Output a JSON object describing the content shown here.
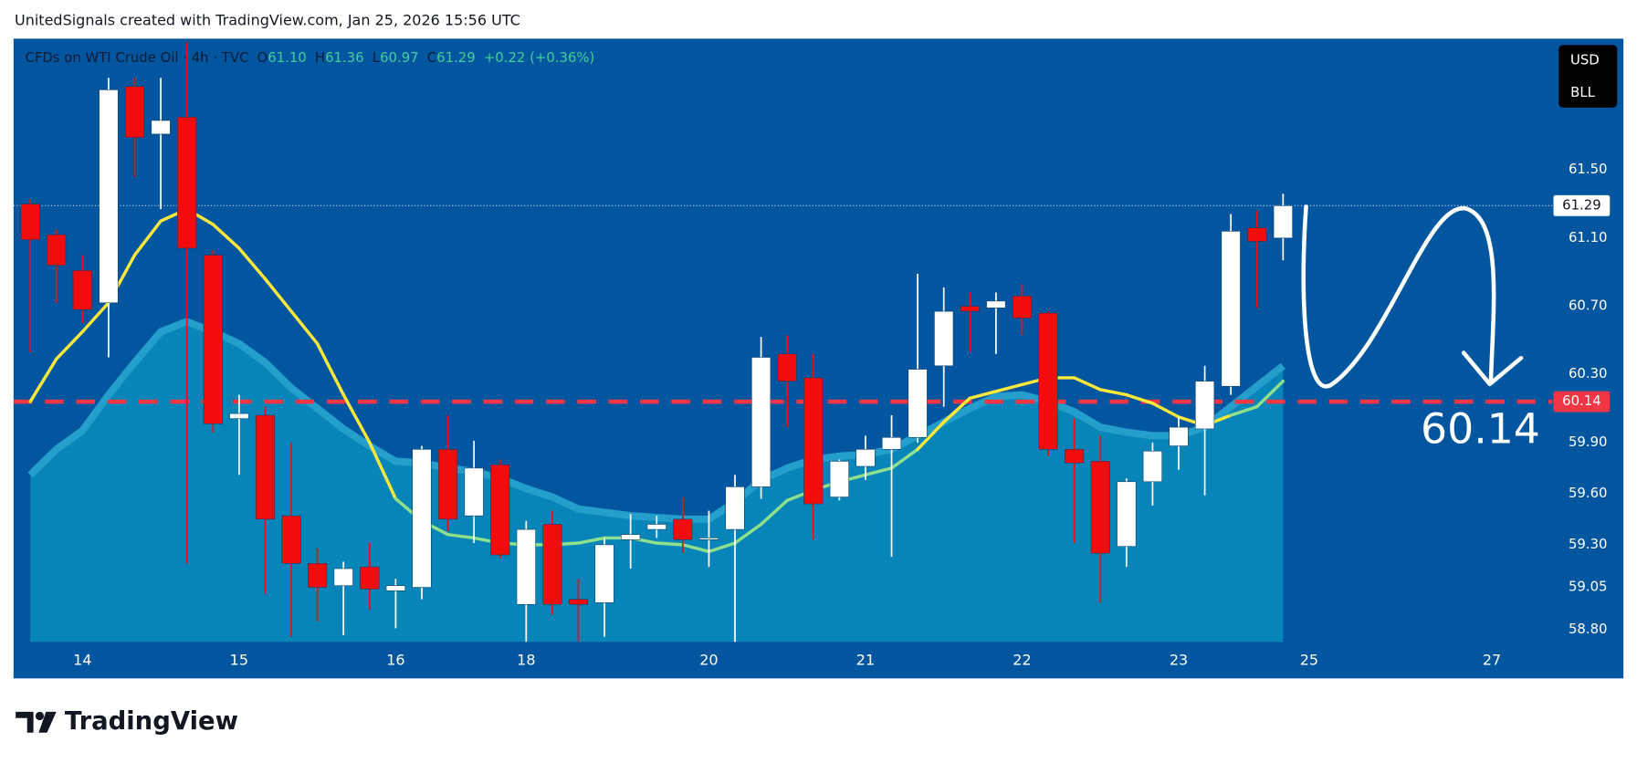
{
  "watermark": "UnitedSignals created with TradingView.com, Jan 25, 2026 15:56 UTC",
  "logo": "TradingView",
  "currency": "USD",
  "unit": "BLL",
  "chart_data": {
    "type": "candlestick",
    "title": "CFDs on WTI Crude Oil · 4h · TVC",
    "header": {
      "keys": [
        "O",
        "H",
        "L",
        "C"
      ],
      "values": [
        "61.10",
        "61.36",
        "60.97",
        "61.29"
      ],
      "change": "+0.22 (+0.36%)"
    },
    "open": [
      61.3,
      61.12,
      60.91,
      60.72,
      61.99,
      61.71,
      61.81,
      61.0,
      60.04,
      60.06,
      59.47,
      59.19,
      59.06,
      59.17,
      59.03,
      59.05,
      59.86,
      59.47,
      59.77,
      58.95,
      59.42,
      58.98,
      58.96,
      59.33,
      59.39,
      59.45,
      59.33,
      59.39,
      59.64,
      60.42,
      60.28,
      59.58,
      59.76,
      59.86,
      59.93,
      60.35,
      60.7,
      60.69,
      60.76,
      60.66,
      59.86,
      59.79,
      59.29,
      59.67,
      59.88,
      59.98,
      60.23,
      61.16,
      61.1
    ],
    "high": [
      61.33,
      61.15,
      61.0,
      62.04,
      62.04,
      62.04,
      62.25,
      61.03,
      60.18,
      60.11,
      59.9,
      59.28,
      59.2,
      59.31,
      59.1,
      59.88,
      60.06,
      59.91,
      59.8,
      59.44,
      59.5,
      59.1,
      59.34,
      59.48,
      59.47,
      59.58,
      59.5,
      59.71,
      60.52,
      60.53,
      60.42,
      59.8,
      59.94,
      60.06,
      60.89,
      60.81,
      60.78,
      60.78,
      60.83,
      60.67,
      60.04,
      59.94,
      59.69,
      59.9,
      60.05,
      60.35,
      61.24,
      61.26,
      61.36
    ],
    "low": [
      60.43,
      60.72,
      60.6,
      60.4,
      61.46,
      61.27,
      59.19,
      59.96,
      59.71,
      59.01,
      58.76,
      58.85,
      58.77,
      58.92,
      58.81,
      58.98,
      59.38,
      59.31,
      59.22,
      58.73,
      58.89,
      58.73,
      58.76,
      59.16,
      59.34,
      59.25,
      59.17,
      58.73,
      59.57,
      59.99,
      59.33,
      59.56,
      59.68,
      59.23,
      59.9,
      60.11,
      60.43,
      60.42,
      60.53,
      59.82,
      59.31,
      58.96,
      59.17,
      59.53,
      59.74,
      59.59,
      60.18,
      60.69,
      60.97
    ],
    "close": [
      61.09,
      60.94,
      60.68,
      61.97,
      61.69,
      61.79,
      61.04,
      60.01,
      60.07,
      59.45,
      59.19,
      59.05,
      59.16,
      59.04,
      59.06,
      59.86,
      59.45,
      59.75,
      59.24,
      59.39,
      58.95,
      58.95,
      59.3,
      59.36,
      59.42,
      59.33,
      59.34,
      59.64,
      60.4,
      60.26,
      59.54,
      59.79,
      59.86,
      59.93,
      60.33,
      60.67,
      60.67,
      60.73,
      60.63,
      59.86,
      59.78,
      59.25,
      59.67,
      59.85,
      59.99,
      60.26,
      61.14,
      61.08,
      61.29
    ],
    "up_color": "#ffffff",
    "down_color": "#f20d0d",
    "ma": {
      "values": [
        60.14,
        60.39,
        60.55,
        60.72,
        61.0,
        61.2,
        61.27,
        61.18,
        61.04,
        60.86,
        60.67,
        60.48,
        60.18,
        59.9,
        59.57,
        59.44,
        59.36,
        59.34,
        59.31,
        59.3,
        59.3,
        59.31,
        59.34,
        59.34,
        59.31,
        59.3,
        59.26,
        59.31,
        59.42,
        59.56,
        59.62,
        59.67,
        59.71,
        59.75,
        59.86,
        60.02,
        60.16,
        60.2,
        60.24,
        60.28,
        60.28,
        60.21,
        60.18,
        60.13,
        60.05,
        60.0,
        60.06,
        60.11,
        60.26
      ],
      "color": "#ffe83a",
      "inside_color": "#8fe08a"
    },
    "band": {
      "values": [
        59.71,
        59.86,
        59.97,
        60.18,
        60.37,
        60.55,
        60.61,
        60.55,
        60.48,
        60.37,
        60.22,
        60.1,
        59.98,
        59.88,
        59.79,
        59.78,
        59.75,
        59.73,
        59.69,
        59.63,
        59.58,
        59.51,
        59.49,
        59.47,
        59.46,
        59.45,
        59.45,
        59.55,
        59.68,
        59.75,
        59.8,
        59.82,
        59.83,
        59.86,
        59.94,
        60.02,
        60.1,
        60.17,
        60.18,
        60.14,
        60.08,
        59.99,
        59.96,
        59.94,
        59.94,
        59.99,
        60.11,
        60.23,
        60.35
      ],
      "color": "#0785b9",
      "edge_color": "#249fcc"
    },
    "level": 60.14,
    "level_color": "#f23645",
    "last_price": 61.29,
    "xlim": [
      -0.64,
      58.32
    ],
    "xticks": [
      {
        "value": 2,
        "label": "14"
      },
      {
        "value": 8,
        "label": "15"
      },
      {
        "value": 14,
        "label": "16"
      },
      {
        "value": 19,
        "label": "18"
      },
      {
        "value": 26,
        "label": "20"
      },
      {
        "value": 32,
        "label": "21"
      },
      {
        "value": 38,
        "label": "22"
      },
      {
        "value": 44,
        "label": "23"
      },
      {
        "value": 49,
        "label": "25"
      },
      {
        "value": 56,
        "label": "27"
      }
    ],
    "ylim": [
      58.73,
      62.27
    ],
    "yticks": [
      {
        "value": 61.5,
        "label": "61.50"
      },
      {
        "value": 61.1,
        "label": "61.10"
      },
      {
        "value": 60.7,
        "label": "60.70"
      },
      {
        "value": 60.3,
        "label": "60.30"
      },
      {
        "value": 59.9,
        "label": "59.90"
      },
      {
        "value": 59.6,
        "label": "59.60"
      },
      {
        "value": 59.3,
        "label": "59.30"
      },
      59.05,
      {
        "value": 58.8,
        "label": "58.80"
      }
    ],
    "background": "#0256a0"
  }
}
